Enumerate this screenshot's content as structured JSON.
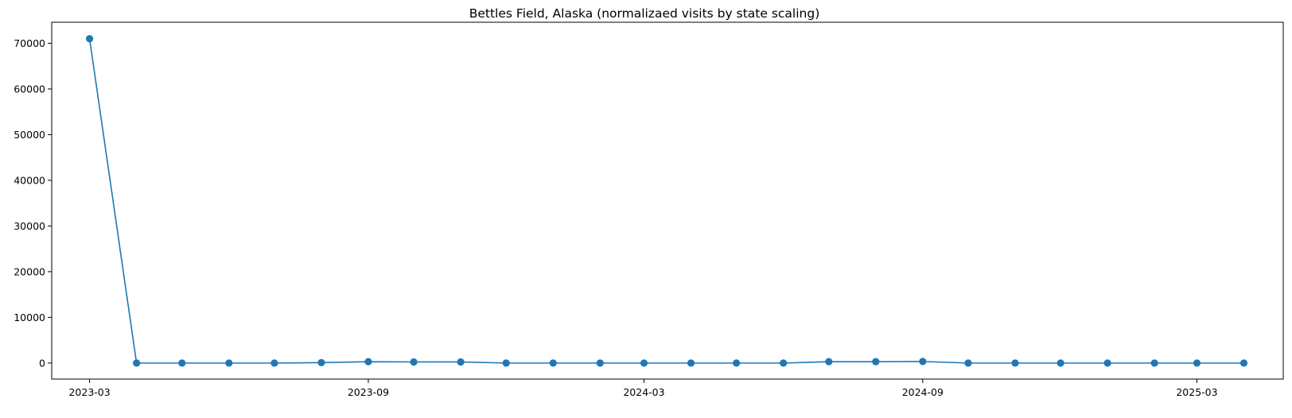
{
  "chart_data": {
    "type": "line",
    "title": "Bettles Field, Alaska (normalizaed visits by state scaling)",
    "xlabel": "",
    "ylabel": "",
    "x": [
      "2023-03-01",
      "2023-04-01",
      "2023-05-01",
      "2023-06-01",
      "2023-07-01",
      "2023-08-01",
      "2023-09-01",
      "2023-10-01",
      "2023-11-01",
      "2023-12-01",
      "2024-01-01",
      "2024-02-01",
      "2024-03-01",
      "2024-04-01",
      "2024-05-01",
      "2024-06-01",
      "2024-07-01",
      "2024-08-01",
      "2024-09-01",
      "2024-10-01",
      "2024-11-01",
      "2024-12-01",
      "2025-01-01",
      "2025-02-01",
      "2025-03-01",
      "2025-04-01"
    ],
    "series": [
      {
        "values": [
          71000,
          0,
          0,
          0,
          0,
          100,
          300,
          250,
          250,
          0,
          0,
          0,
          0,
          0,
          0,
          0,
          300,
          300,
          350,
          0,
          0,
          0,
          0,
          0,
          0,
          0
        ]
      }
    ],
    "x_ticks": [
      "2023-03",
      "2023-09",
      "2024-03",
      "2024-09",
      "2025-03"
    ],
    "y_ticks": [
      "0",
      "10000",
      "20000",
      "30000",
      "40000",
      "50000",
      "60000",
      "70000"
    ],
    "ylim": [
      -3500,
      74600
    ],
    "xlim": [
      "2023-02-04",
      "2025-04-27"
    ],
    "grid": false,
    "line_color": "#1f77b4",
    "marker": "circle"
  }
}
